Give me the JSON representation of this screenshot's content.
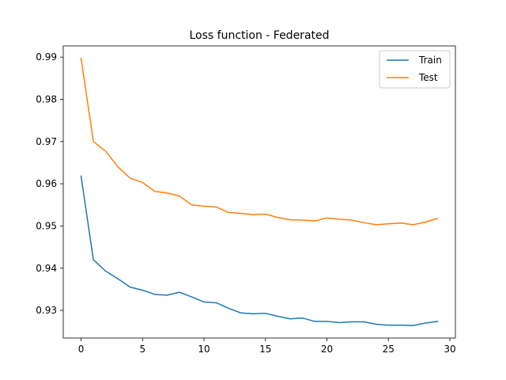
{
  "chart_data": {
    "type": "line",
    "title": "Loss function - Federated",
    "xlabel": "",
    "ylabel": "",
    "xlim": [
      -1.45,
      30.45
    ],
    "ylim": [
      0.92345,
      0.99266
    ],
    "xticks": [
      0,
      5,
      10,
      15,
      20,
      25,
      30
    ],
    "yticks": [
      0.93,
      0.94,
      0.95,
      0.96,
      0.97,
      0.98,
      0.99
    ],
    "xtick_labels": [
      "0",
      "5",
      "10",
      "15",
      "20",
      "25",
      "30"
    ],
    "ytick_labels": [
      "0.93",
      "0.94",
      "0.95",
      "0.96",
      "0.97",
      "0.98",
      "0.99"
    ],
    "grid": false,
    "legend_position": "top-right",
    "x": [
      0,
      1,
      2,
      3,
      4,
      5,
      6,
      7,
      8,
      9,
      10,
      11,
      12,
      13,
      14,
      15,
      16,
      17,
      18,
      19,
      20,
      21,
      22,
      23,
      24,
      25,
      26,
      27,
      28,
      29
    ],
    "series": [
      {
        "name": "Train",
        "color": "#1f77b4",
        "values": [
          0.9618,
          0.942,
          0.9393,
          0.9375,
          0.9355,
          0.9348,
          0.9338,
          0.9336,
          0.9343,
          0.9332,
          0.932,
          0.9318,
          0.9305,
          0.9294,
          0.9292,
          0.9293,
          0.9286,
          0.928,
          0.9282,
          0.9274,
          0.9274,
          0.9271,
          0.9273,
          0.9273,
          0.9267,
          0.9265,
          0.9265,
          0.9264,
          0.927,
          0.9274
        ]
      },
      {
        "name": "Test",
        "color": "#ff7f0e",
        "values": [
          0.9897,
          0.97,
          0.9677,
          0.964,
          0.9613,
          0.9603,
          0.9582,
          0.9578,
          0.9571,
          0.955,
          0.9547,
          0.9545,
          0.9532,
          0.953,
          0.9527,
          0.9528,
          0.952,
          0.9515,
          0.9514,
          0.9512,
          0.9519,
          0.9516,
          0.9514,
          0.9508,
          0.9503,
          0.9505,
          0.9507,
          0.9503,
          0.9509,
          0.9518
        ]
      }
    ]
  }
}
